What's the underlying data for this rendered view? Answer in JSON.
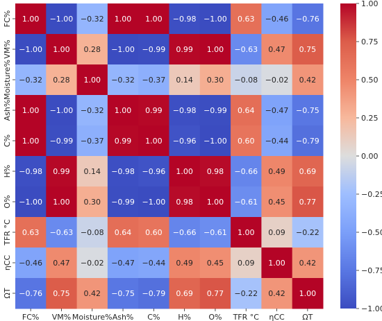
{
  "chart_data": {
    "type": "heatmap",
    "title": "",
    "xlabel": "",
    "ylabel": "",
    "categories_x": [
      "FC%",
      "VM%",
      "Moisture%",
      "Ash%",
      "C%",
      "H%",
      "O%",
      "TFR °C",
      "ηCC",
      "ΩT"
    ],
    "categories_y": [
      "FC%",
      "VM%",
      "Moisture%",
      "Ash%",
      "C%",
      "H%",
      "O%",
      "TFR °C",
      "ηCC",
      "ΩT"
    ],
    "matrix": [
      [
        1.0,
        -1.0,
        -0.32,
        1.0,
        1.0,
        -0.98,
        -1.0,
        0.63,
        -0.46,
        -0.76
      ],
      [
        -1.0,
        1.0,
        0.28,
        -1.0,
        -0.99,
        0.99,
        1.0,
        -0.63,
        0.47,
        0.75
      ],
      [
        -0.32,
        0.28,
        1.0,
        -0.32,
        -0.37,
        0.14,
        0.3,
        -0.08,
        -0.02,
        0.42
      ],
      [
        1.0,
        -1.0,
        -0.32,
        1.0,
        0.99,
        -0.98,
        -0.99,
        0.64,
        -0.47,
        -0.75
      ],
      [
        1.0,
        -0.99,
        -0.37,
        0.99,
        1.0,
        -0.96,
        -1.0,
        0.6,
        -0.44,
        -0.79
      ],
      [
        -0.98,
        0.99,
        0.14,
        -0.98,
        -0.96,
        1.0,
        0.98,
        -0.66,
        0.49,
        0.69
      ],
      [
        -1.0,
        1.0,
        0.3,
        -0.99,
        -1.0,
        0.98,
        1.0,
        -0.61,
        0.45,
        0.77
      ],
      [
        0.63,
        -0.63,
        -0.08,
        0.64,
        0.6,
        -0.66,
        -0.61,
        1.0,
        0.09,
        -0.22
      ],
      [
        -0.46,
        0.47,
        -0.02,
        -0.47,
        -0.44,
        0.49,
        0.45,
        0.09,
        1.0,
        0.42
      ],
      [
        -0.76,
        0.75,
        0.42,
        -0.75,
        -0.79,
        0.69,
        0.77,
        -0.22,
        0.42,
        1.0
      ]
    ],
    "value_format": "0.00",
    "colormap": "coolwarm",
    "vmin": -1.0,
    "vmax": 1.0,
    "colorbar_ticks": [
      1.0,
      0.75,
      0.5,
      0.25,
      0.0,
      -0.25,
      -0.5,
      -0.75,
      -1.0
    ],
    "colorbar_tick_labels": [
      "1.00",
      "0.75",
      "0.50",
      "0.25",
      "0.00",
      "−0.25",
      "−0.50",
      "−0.75",
      "−1.00"
    ],
    "colorbar_position": "right",
    "grid": false
  }
}
